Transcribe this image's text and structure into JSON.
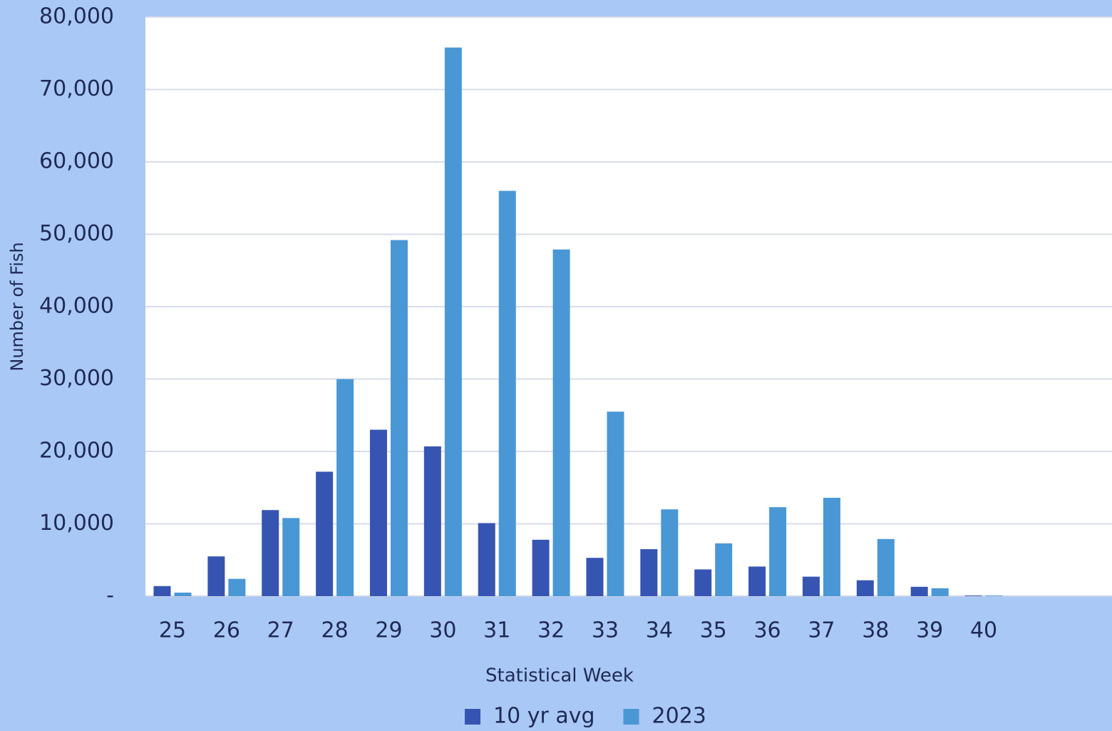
{
  "chart_data": {
    "type": "bar",
    "x_label": "Statistical Week",
    "y_label": "Number of Fish",
    "categories": [
      "25",
      "26",
      "27",
      "28",
      "29",
      "30",
      "31",
      "32",
      "33",
      "34",
      "35",
      "36",
      "37",
      "38",
      "39",
      "40",
      null,
      null
    ],
    "series": [
      {
        "name": "10 yr avg",
        "color": "#3655b3",
        "values": [
          1400,
          5500,
          11900,
          17200,
          23000,
          20700,
          10100,
          7800,
          5300,
          6500,
          3700,
          4100,
          2700,
          2200,
          1300,
          100,
          null,
          null
        ]
      },
      {
        "name": "2023",
        "color": "#4a97d6",
        "values": [
          500,
          2400,
          10800,
          30000,
          49200,
          75800,
          56000,
          47900,
          25500,
          12000,
          7300,
          12300,
          13600,
          7900,
          1100,
          100,
          null,
          null
        ]
      }
    ],
    "ylim": [
      0,
      80000
    ],
    "yticks": [
      {
        "value": 0,
        "label": "-"
      },
      {
        "value": 10000,
        "label": "10,000"
      },
      {
        "value": 20000,
        "label": "20,000"
      },
      {
        "value": 30000,
        "label": "30,000"
      },
      {
        "value": 40000,
        "label": "40,000"
      },
      {
        "value": 50000,
        "label": "50,000"
      },
      {
        "value": 60000,
        "label": "60,000"
      },
      {
        "value": 70000,
        "label": "70,000"
      },
      {
        "value": 80000,
        "label": "80,000"
      }
    ],
    "grid": true,
    "legend": "bottom"
  }
}
